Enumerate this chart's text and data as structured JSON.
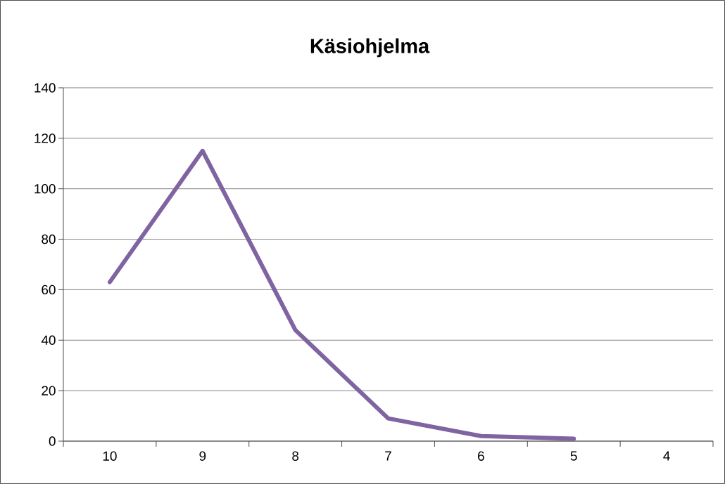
{
  "chart_data": {
    "type": "line",
    "title": "Käsiohjelma",
    "categories": [
      "10",
      "9",
      "8",
      "7",
      "6",
      "5",
      "4"
    ],
    "series": [
      {
        "color": "#8064a2",
        "values": [
          63,
          115,
          44,
          9,
          2,
          1,
          null
        ]
      }
    ],
    "ylim": [
      0,
      140
    ],
    "yticks": [
      0,
      20,
      40,
      60,
      80,
      100,
      120,
      140
    ],
    "grid": "y",
    "marker": "none",
    "line_style": "solid"
  }
}
